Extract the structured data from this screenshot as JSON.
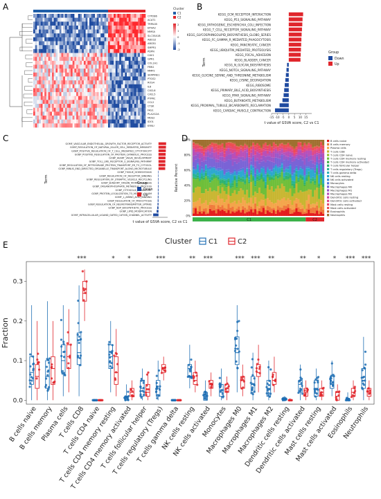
{
  "panel_letters": {
    "a": "A",
    "b": "B",
    "c": "C",
    "d": "D",
    "e": "E"
  },
  "colors": {
    "c1": "#1f5ea8",
    "c2": "#e0262c",
    "up": "#e0262c",
    "down": "#1f4aa0",
    "heat_high": "#e0262c",
    "heat_low": "#1f4aa0",
    "box_c1": "#1f6fb4",
    "box_c2": "#e0262c"
  },
  "chart_data": [
    {
      "type": "heatmap",
      "panel": "A",
      "legend_cluster_title": "Cluster",
      "legend_clusters": [
        "C1",
        "C2"
      ],
      "scale_ticks": [
        "2",
        "1",
        "0",
        "-1",
        "-2"
      ],
      "genes": [
        "CYP2B6",
        "ACAT1",
        "TRPA1B",
        "EPHA2",
        "MMSA",
        "SLC35A1B",
        "ABCG2",
        "ABCB1",
        "SMPR1",
        "PDPN",
        "CAV1",
        "GPR1",
        "COL1A1",
        "FBN1",
        "MMP2",
        "SERPINE1",
        "PTGS2",
        "ROS4",
        "IL6",
        "CXCL8",
        "CXCL5",
        "PTPRC",
        "CCL2",
        "CTSK",
        "FAS1",
        "PLA2G2A",
        "MDS2",
        "IDO1",
        "KYNU"
      ],
      "upper_block_genes": 10,
      "columns_c1": 40,
      "columns_c2": 20
    },
    {
      "type": "bar",
      "panel": "B",
      "xlabel": "t value of GSVA score, C2 vs C1",
      "ylabel": "Term",
      "legend_title": "Group",
      "legend": [
        "Down",
        "Up"
      ],
      "xlim": [
        -15,
        20
      ],
      "xticks": [
        "-15",
        "-10",
        "-5",
        "0",
        "5",
        "10",
        "15"
      ],
      "terms": [
        "KEGG_ECM_RECEPTOR_INTERACTION",
        "KEGG_P53_SIGNALING_PATHWAY",
        "KEGG_PATHOGENIC_ESCHERICHIA_COLI_INFECTION",
        "KEGG_T_CELL_RECEPTOR_SIGNALING_PATHWAY",
        "KEGG_GLYCOSPHINGOLIPID_BIOSYNTHESIS_GLOBO_SERIES",
        "KEGG_FC_GAMMA_R_MEDIATED_PHAGOCYTOSIS",
        "KEGG_PANCREATIC_CANCER",
        "KEGG_UBIQUITIN_MEDIATED_PROTEOLYSIS",
        "KEGG_FOCAL_ADHESION",
        "KEGG_BLADDER_CANCER",
        "KEGG_N_GLYCAN_BIOSYNTHESIS",
        "KEGG_NOTCH_SIGNALING_PATHWAY",
        "KEGG_GLYCINE_SERINE_AND_THREONINE_METABOLISM",
        "KEGG_LYSINE_DEGRADATION",
        "KEGG_RIBOSOME",
        "KEGG_PRIMARY_BILE_ACID_BIOSYNTHESIS",
        "KEGG_PPAR_SIGNALING_PATHWAY",
        "KEGG_BUTANOATE_METABOLISM",
        "KEGG_PROXIMAL_TUBULE_BICARBONATE_RECLAMATION",
        "KEGG_CARDIAC_MUSCLE_CONTRACTION"
      ],
      "values": [
        12.5,
        12.0,
        11.8,
        11.5,
        11.2,
        11.0,
        10.8,
        10.6,
        10.4,
        10.2,
        -1.5,
        -2.0,
        -2.5,
        -3.0,
        -3.5,
        -4.0,
        -4.5,
        -5.5,
        -8.0,
        -12.0
      ]
    },
    {
      "type": "bar",
      "panel": "C",
      "xlabel": "t value of GSVA score, C2 vs C1",
      "ylabel": "Term",
      "legend_title": "Group",
      "legend": [
        "Down",
        "Up"
      ],
      "xlim": [
        -4,
        6
      ],
      "terms": [
        "GOMF_VASCULAR_ENDOTHELIAL_GROWTH_FACTOR_RECEPTOR_ACTIVITY",
        "GOBP_REGULATION_OF_NATURAL_KILLER_CELL_MEDIATED_IMMUNITY",
        "GOBP_POSITIVE_REGULATION_OF_T_CELL_MEDIATED_CYTOTOXICITY",
        "GOBP_POSITIVE_REGULATION_OF_PROTEIN_CATABOLIC_PROCESS",
        "GOBP_HEART_VALVE_DEVELOPMENT",
        "GOBP_TOLL_LIKE_RECEPTOR_3_SIGNALING_PATHWAY",
        "GOBP_REGULATION_OF_RETROGRADE_PROTEIN_TRANSPORT_ER_TO_CYTOSOL",
        "GOBP_MINUS_END_DIRECTED_ORGANELLE_TRANSPORT_ALONG_MICROTUBULE",
        "GOBP_TISSUE_HOMEOSTASIS",
        "GOBP_REGULATION_OF_RECEPTOR_BINDING",
        "GOBP_REGULATION_OF_SYNAPTIC_VESICLE_RECYCLING",
        "GOBP_SENSORY_ORGAN_MORPHOGENESIS",
        "GOBP_ORGANOPHOSPHATE_METABOLIC_PROCESS",
        "GOBP_CYTOSOLIC_TRANSPORT",
        "GOBP_PROTEIN_LOCALIZATION_TO_MOTILE_CILIUM",
        "GOMF_L_AMINO_ACID_BINDING",
        "GOBP_REGULATION_OF_PINOCYTOSIS",
        "GOBP_REGULATION_OF_NEUROTRANSMITTER_UPTAKE",
        "GOBP_ADP_BIOSYNTHETIC_PROCESS",
        "GOBP_LIPID_MODIFICATION",
        "GOMF_INTRACELLULAR_LIGAND_GATED_CATION_CHANNEL_ACTIVITY"
      ],
      "values": [
        5.0,
        4.9,
        4.8,
        4.7,
        4.6,
        4.5,
        4.5,
        4.4,
        -0.2,
        -0.25,
        -0.3,
        -0.3,
        -0.35,
        -0.4,
        -0.4,
        -0.45,
        -0.5,
        -0.6,
        -0.8,
        -1.2,
        -3.5
      ]
    },
    {
      "type": "bar",
      "panel": "D",
      "stacked": true,
      "ylabel": "Relative Percent",
      "yticks": [
        "0%",
        "20%",
        "40%",
        "60%",
        "80%",
        "100%"
      ],
      "group_labels": [
        "C1",
        "C2"
      ],
      "group_sizes": [
        55,
        9
      ],
      "cell_types": [
        "B cells naive",
        "B cells memory",
        "Plasma cells",
        "T cells CD8",
        "T cells CD4 naive",
        "T cells CD4 memory resting",
        "T cells CD4 memory activated",
        "T cells follicular helper",
        "T cells regulatory (Tregs)",
        "T cells gamma delta",
        "NK cells resting",
        "NK cells activated",
        "Monocytes",
        "Macrophages M0",
        "Macrophages M1",
        "Macrophages M2",
        "Dendritic cells resting",
        "Dendritic cells activated",
        "Mast cells resting",
        "Mast cells activated",
        "Eosinophils",
        "Neutrophils"
      ],
      "colors": [
        "#e41a1c",
        "#f07a3a",
        "#f4a54a",
        "#c8b631",
        "#9bbf2e",
        "#6fbf3a",
        "#3cb24a",
        "#2fb36f",
        "#2ab596",
        "#2ab2b6",
        "#2ba7cf",
        "#3b8fd9",
        "#5577dc",
        "#7a63d6",
        "#9a57c9",
        "#b84fb8",
        "#cf4aa3",
        "#df4788",
        "#e84a6c",
        "#ee4d52",
        "#c06a3a",
        "#9f7030"
      ],
      "mean_fractions": [
        0.06,
        0.05,
        0.08,
        0.14,
        0.0,
        0.12,
        0.01,
        0.03,
        0.03,
        0.0,
        0.07,
        0.01,
        0.02,
        0.1,
        0.05,
        0.06,
        0.0,
        0.03,
        0.03,
        0.03,
        0.01,
        0.06
      ]
    },
    {
      "type": "box",
      "panel": "E",
      "legend_title": "Cluster",
      "legend": [
        "C1",
        "C2"
      ],
      "ylabel": "Fraction",
      "ylim": [
        0,
        0.35
      ],
      "yticks": [
        "0.0",
        "0.1",
        "0.2",
        "0.3"
      ],
      "categories": [
        "B cells naive",
        "B cells memory",
        "Plasma cells",
        "T cells CD8",
        "T cells CD4 naive",
        "T cells CD4 memory resting",
        "T cells CD4 memory activated",
        "T cells follicular helper",
        "T cells regulatory (Tregs)",
        "T cells gamma delta",
        "NK cells resting",
        "NK cells activated",
        "Monocytes",
        "Macrophages M0",
        "Macrophages M1",
        "Macrophages M2",
        "Dendritic cells resting",
        "Dendritic cells activated",
        "Mast cells resting",
        "Mast cells activated",
        "Eosinophils",
        "Neutrophils"
      ],
      "significance": [
        "",
        "",
        "",
        "***",
        "",
        "*",
        "*",
        "",
        "***",
        "",
        "**",
        "***",
        "",
        "***",
        "***",
        "**",
        "",
        "**",
        "*",
        "*",
        "***",
        "***"
      ],
      "series": [
        {
          "name": "C1",
          "boxes": [
            [
              0,
              0.04,
              0.07,
              0.11,
              0.24
            ],
            [
              0,
              0.03,
              0.06,
              0.1,
              0.25
            ],
            [
              0.01,
              0.07,
              0.1,
              0.14,
              0.24
            ],
            [
              0.01,
              0.09,
              0.12,
              0.17,
              0.29
            ],
            [
              0,
              0,
              0,
              0,
              0
            ],
            [
              0.02,
              0.08,
              0.11,
              0.14,
              0.2
            ],
            [
              0,
              0,
              0.005,
              0.01,
              0.04
            ],
            [
              0,
              0.01,
              0.03,
              0.05,
              0.08
            ],
            [
              0,
              0.01,
              0.03,
              0.05,
              0.1
            ],
            [
              0,
              0,
              0,
              0,
              0
            ],
            [
              0.03,
              0.06,
              0.08,
              0.09,
              0.14
            ],
            [
              0,
              0,
              0.01,
              0.02,
              0.05
            ],
            [
              0,
              0.01,
              0.02,
              0.04,
              0.08
            ],
            [
              0.02,
              0.09,
              0.12,
              0.16,
              0.24
            ],
            [
              0,
              0.02,
              0.04,
              0.06,
              0.12
            ],
            [
              0,
              0.01,
              0.03,
              0.05,
              0.1
            ],
            [
              0,
              0,
              0,
              0.005,
              0.01
            ],
            [
              0,
              0.02,
              0.04,
              0.05,
              0.09
            ],
            [
              0,
              0.01,
              0.03,
              0.05,
              0.08
            ],
            [
              0.01,
              0.03,
              0.04,
              0.06,
              0.1
            ],
            [
              0,
              0,
              0,
              0.005,
              0.02
            ],
            [
              0,
              0.03,
              0.05,
              0.08,
              0.16
            ]
          ]
        },
        {
          "name": "C2",
          "boxes": [
            [
              0,
              0.03,
              0.06,
              0.09,
              0.2
            ],
            [
              0,
              0.04,
              0.08,
              0.11,
              0.2
            ],
            [
              0.02,
              0.08,
              0.11,
              0.14,
              0.23
            ],
            [
              0.2,
              0.25,
              0.27,
              0.3,
              0.33
            ],
            [
              0,
              0,
              0,
              0,
              0
            ],
            [
              0.01,
              0.04,
              0.07,
              0.11,
              0.18
            ],
            [
              0,
              0.01,
              0.02,
              0.03,
              0.05
            ],
            [
              0,
              0.01,
              0.02,
              0.04,
              0.07
            ],
            [
              0.05,
              0.07,
              0.08,
              0.09,
              0.11
            ],
            [
              0,
              0,
              0,
              0,
              0
            ],
            [
              0.02,
              0.04,
              0.05,
              0.07,
              0.1
            ],
            [
              0.01,
              0.03,
              0.04,
              0.05,
              0.07
            ],
            [
              0,
              0.02,
              0.03,
              0.04,
              0.06
            ],
            [
              0.01,
              0.03,
              0.05,
              0.06,
              0.09
            ],
            [
              0.02,
              0.06,
              0.07,
              0.09,
              0.14
            ],
            [
              0.02,
              0.04,
              0.05,
              0.07,
              0.11
            ],
            [
              0,
              0,
              0,
              0,
              0.005
            ],
            [
              0,
              0.01,
              0.02,
              0.03,
              0.05
            ],
            [
              0,
              0.01,
              0.02,
              0.03,
              0.05
            ],
            [
              0,
              0,
              0.01,
              0.02,
              0.04
            ],
            [
              0,
              0.01,
              0.02,
              0.03,
              0.05
            ],
            [
              0,
              0.01,
              0.02,
              0.03,
              0.05
            ]
          ]
        }
      ]
    }
  ]
}
